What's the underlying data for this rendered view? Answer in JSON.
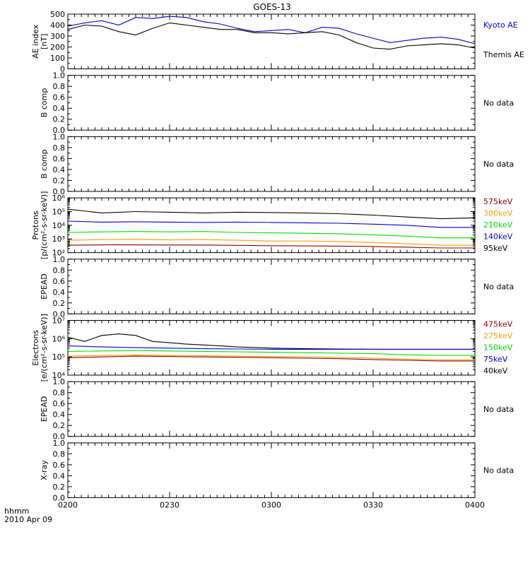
{
  "title": "GOES-13",
  "footer": {
    "time_label": "hhmm",
    "date_label": "2010 Apr 09"
  },
  "colors": {
    "axes": "#000000",
    "kyoto": "#0000cc",
    "themis": "#000000",
    "ch_dark_red": "#8b0000",
    "ch_orange": "#f0a000",
    "ch_green": "#00dd00",
    "ch_blue": "#0000cc",
    "ch_black": "#000000"
  },
  "chart_data": {
    "type": "line",
    "x_ticks": [
      "0200",
      "0230",
      "0300",
      "0330",
      "0400"
    ],
    "panels": [
      {
        "id": "ae",
        "ylabel": [
          "AE index",
          "[nT]"
        ],
        "scale": "linear",
        "ylim": [
          0,
          500
        ],
        "y_ticks": [
          "0",
          "100",
          "200",
          "300",
          "400",
          "500"
        ],
        "no_data": "",
        "legend": [
          "Kyoto AE",
          "Themis AE"
        ],
        "series": [
          {
            "name": "Kyoto AE",
            "color": "#0000cc",
            "x": [
              "02:00",
              "02:05",
              "02:10",
              "02:15",
              "02:20",
              "02:25",
              "02:30",
              "02:35",
              "02:40",
              "02:45",
              "02:50",
              "02:55",
              "03:00",
              "03:05",
              "03:10",
              "03:15",
              "03:20",
              "03:25",
              "03:30",
              "03:35",
              "03:40",
              "03:45",
              "03:50",
              "03:55",
              "04:00"
            ],
            "y": [
              390,
              420,
              440,
              400,
              470,
              460,
              480,
              470,
              430,
              410,
              370,
              340,
              350,
              360,
              330,
              380,
              370,
              320,
              280,
              240,
              260,
              280,
              290,
              270,
              230
            ]
          },
          {
            "name": "Themis AE",
            "color": "#000000",
            "x": [
              "02:00",
              "02:05",
              "02:10",
              "02:15",
              "02:20",
              "02:25",
              "02:30",
              "02:35",
              "02:40",
              "02:45",
              "02:50",
              "02:55",
              "03:00",
              "03:05",
              "03:10",
              "03:15",
              "03:20",
              "03:25",
              "03:30",
              "03:35",
              "03:40",
              "03:45",
              "03:50",
              "03:55",
              "04:00"
            ],
            "y": [
              360,
              400,
              390,
              340,
              310,
              370,
              420,
              400,
              380,
              360,
              360,
              330,
              330,
              320,
              330,
              340,
              310,
              240,
              190,
              180,
              210,
              220,
              230,
              220,
              190
            ]
          }
        ]
      },
      {
        "id": "bcomp1",
        "ylabel": [
          "B comp"
        ],
        "scale": "linear",
        "ylim": [
          0,
          1
        ],
        "y_ticks": [
          "0.0",
          "0.2",
          "0.4",
          "0.6",
          "0.8",
          "1.0"
        ],
        "no_data": "No data",
        "legend": [],
        "series": []
      },
      {
        "id": "bcomp2",
        "ylabel": [
          "B comp"
        ],
        "scale": "linear",
        "ylim": [
          0,
          1
        ],
        "y_ticks": [
          "0.0",
          "0.2",
          "0.4",
          "0.6",
          "0.8",
          "1.0"
        ],
        "no_data": "No data",
        "legend": [],
        "series": []
      },
      {
        "id": "protons",
        "ylabel": [
          "Protons",
          "[p/(cm²-s-sr-keV)]"
        ],
        "scale": "log",
        "ylim": [
          100,
          1000000
        ],
        "y_ticks": [
          "10²",
          "10³",
          "10⁴",
          "10⁵",
          "10⁶"
        ],
        "no_data": "",
        "legend": [
          "575keV",
          "300keV",
          "210keV",
          "140keV",
          "95keV"
        ],
        "series": [
          {
            "name": "95keV",
            "color": "#000000",
            "x": [
              "02:00",
              "02:10",
              "02:20",
              "02:30",
              "02:40",
              "02:50",
              "03:00",
              "03:10",
              "03:20",
              "03:30",
              "03:40",
              "03:50",
              "04:00"
            ],
            "y": [
              150000,
              80000,
              100000,
              90000,
              80000,
              90000,
              85000,
              80000,
              70000,
              55000,
              40000,
              30000,
              35000
            ]
          },
          {
            "name": "140keV",
            "color": "#0000cc",
            "x": [
              "02:00",
              "02:10",
              "02:20",
              "02:30",
              "02:40",
              "02:50",
              "03:00",
              "03:10",
              "03:20",
              "03:30",
              "03:40",
              "03:50",
              "04:00"
            ],
            "y": [
              20000,
              17000,
              18000,
              17000,
              16000,
              17000,
              16000,
              15000,
              14000,
              12000,
              10000,
              7000,
              7000
            ]
          },
          {
            "name": "210keV",
            "color": "#00dd00",
            "x": [
              "02:00",
              "02:10",
              "02:20",
              "02:30",
              "02:40",
              "02:50",
              "03:00",
              "03:10",
              "03:20",
              "03:30",
              "03:40",
              "03:50",
              "04:00"
            ],
            "y": [
              3000,
              3300,
              3500,
              3300,
              3500,
              3000,
              2800,
              2600,
              2400,
              2000,
              1600,
              1200,
              1200
            ]
          },
          {
            "name": "300keV",
            "color": "#f0a000",
            "x": [
              "02:00",
              "02:10",
              "02:20",
              "02:30",
              "02:40",
              "02:50",
              "03:00",
              "03:10",
              "03:20",
              "03:30",
              "03:40",
              "03:50",
              "04:00"
            ],
            "y": [
              800,
              900,
              950,
              850,
              900,
              800,
              700,
              700,
              650,
              550,
              450,
              350,
              350
            ]
          },
          {
            "name": "575keV",
            "color": "#8b0000",
            "x": [
              "02:00",
              "02:10",
              "02:20",
              "02:30",
              "02:40",
              "02:50",
              "03:00",
              "03:10",
              "03:20",
              "03:30",
              "03:40",
              "03:50",
              "04:00"
            ],
            "y": [
              350,
              370,
              370,
              360,
              360,
              340,
              320,
              310,
              300,
              280,
              250,
              220,
              220
            ]
          }
        ]
      },
      {
        "id": "epead1",
        "ylabel": [
          "EPEAD"
        ],
        "scale": "linear",
        "ylim": [
          0,
          1
        ],
        "y_ticks": [
          "0.0",
          "0.2",
          "0.4",
          "0.6",
          "0.8",
          "1.0"
        ],
        "no_data": "No data",
        "legend": [],
        "series": []
      },
      {
        "id": "electrons",
        "ylabel": [
          "Electrons",
          "[e/(cm²-s-sr-keV)]"
        ],
        "scale": "log",
        "ylim": [
          10000,
          10000000
        ],
        "y_ticks": [
          "10⁴",
          "10⁵",
          "10⁶",
          "10⁷"
        ],
        "no_data": "",
        "legend": [
          "475keV",
          "275keV",
          "150keV",
          "75keV",
          "40keV"
        ],
        "series": [
          {
            "name": "40keV",
            "color": "#000000",
            "x": [
              "02:00",
              "02:05",
              "02:10",
              "02:15",
              "02:20",
              "02:25",
              "02:30",
              "02:35",
              "02:40",
              "02:45",
              "02:50",
              "03:00",
              "03:10",
              "03:20",
              "03:30",
              "03:40",
              "03:50",
              "04:00"
            ],
            "y": [
              1200000,
              700000,
              1500000,
              1800000,
              1500000,
              700000,
              600000,
              500000,
              450000,
              400000,
              350000,
              300000,
              280000,
              270000,
              260000,
              260000,
              260000,
              260000
            ]
          },
          {
            "name": "75keV",
            "color": "#0000cc",
            "x": [
              "02:00",
              "02:10",
              "02:20",
              "02:30",
              "02:40",
              "02:50",
              "03:00",
              "03:10",
              "03:20",
              "03:30",
              "03:40",
              "03:50",
              "04:00"
            ],
            "y": [
              400000,
              350000,
              320000,
              300000,
              280000,
              270000,
              260000,
              260000,
              260000,
              260000,
              260000,
              260000,
              260000
            ]
          },
          {
            "name": "150keV",
            "color": "#00dd00",
            "x": [
              "02:00",
              "02:10",
              "02:20",
              "02:30",
              "02:40",
              "02:50",
              "03:00",
              "03:10",
              "03:20",
              "03:30",
              "03:40",
              "03:50",
              "04:00"
            ],
            "y": [
              200000,
              210000,
              220000,
              210000,
              200000,
              190000,
              180000,
              170000,
              160000,
              150000,
              130000,
              120000,
              120000
            ]
          },
          {
            "name": "275keV",
            "color": "#f0a000",
            "x": [
              "02:00",
              "02:10",
              "02:20",
              "02:30",
              "02:40",
              "02:50",
              "03:00",
              "03:10",
              "03:20",
              "03:30",
              "03:40",
              "03:50",
              "04:00"
            ],
            "y": [
              110000,
              120000,
              125000,
              120000,
              115000,
              110000,
              105000,
              100000,
              95000,
              85000,
              75000,
              70000,
              70000
            ]
          },
          {
            "name": "475keV",
            "color": "#8b0000",
            "x": [
              "02:00",
              "02:10",
              "02:20",
              "02:30",
              "02:40",
              "02:50",
              "03:00",
              "03:10",
              "03:20",
              "03:30",
              "03:40",
              "03:50",
              "04:00"
            ],
            "y": [
              90000,
              100000,
              110000,
              105000,
              100000,
              95000,
              90000,
              85000,
              80000,
              72000,
              65000,
              60000,
              60000
            ]
          }
        ]
      },
      {
        "id": "epead2",
        "ylabel": [
          "EPEAD"
        ],
        "scale": "linear",
        "ylim": [
          0,
          1
        ],
        "y_ticks": [
          "0.0",
          "0.2",
          "0.4",
          "0.6",
          "0.8",
          "1.0"
        ],
        "no_data": "No data",
        "legend": [],
        "series": []
      },
      {
        "id": "xray",
        "ylabel": [
          "X-ray"
        ],
        "scale": "linear",
        "ylim": [
          0,
          1
        ],
        "y_ticks": [
          "0.0",
          "0.2",
          "0.4",
          "0.6",
          "0.8",
          "1.0"
        ],
        "no_data": "No data",
        "legend": [],
        "series": []
      }
    ]
  }
}
